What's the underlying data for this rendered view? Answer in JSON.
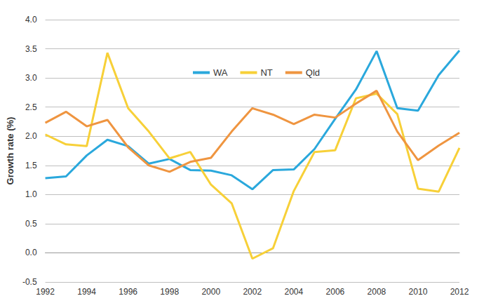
{
  "chart_data": {
    "type": "line",
    "y_label": "Growth rate (%)",
    "x": [
      1992,
      1993,
      1994,
      1995,
      1996,
      1997,
      1998,
      1999,
      2000,
      2001,
      2002,
      2003,
      2004,
      2005,
      2006,
      2007,
      2008,
      2009,
      2010,
      2011,
      2012
    ],
    "series": [
      {
        "name": "WA",
        "color": "#2AA8DC",
        "values": [
          1.28,
          1.31,
          1.67,
          1.94,
          1.83,
          1.53,
          1.61,
          1.42,
          1.41,
          1.33,
          1.09,
          1.42,
          1.43,
          1.78,
          2.3,
          2.8,
          3.46,
          2.48,
          2.44,
          3.05,
          3.47
        ]
      },
      {
        "name": "NT",
        "color": "#F7D038",
        "values": [
          2.03,
          1.86,
          1.83,
          3.43,
          2.48,
          2.08,
          1.62,
          1.73,
          1.17,
          0.85,
          -0.1,
          0.08,
          1.06,
          1.73,
          1.76,
          2.65,
          2.73,
          2.38,
          1.1,
          1.05,
          1.8
        ]
      },
      {
        "name": "Qld",
        "color": "#EF9540",
        "values": [
          2.23,
          2.42,
          2.17,
          2.28,
          1.81,
          1.5,
          1.39,
          1.56,
          1.63,
          2.08,
          2.48,
          2.37,
          2.21,
          2.37,
          2.32,
          2.56,
          2.78,
          2.08,
          1.59,
          1.84,
          2.06
        ]
      }
    ],
    "xlim": [
      1992,
      2012
    ],
    "xticks": [
      1992,
      1994,
      1996,
      1998,
      2000,
      2002,
      2004,
      2006,
      2008,
      2010,
      2012
    ],
    "ylim": [
      -0.5,
      4.0
    ],
    "yticks": [
      -0.5,
      {
        "value": 0,
        "label": "0.0"
      },
      0.5,
      {
        "value": 1,
        "label": "1.0"
      },
      1.5,
      {
        "value": 2,
        "label": "2.0"
      },
      2.5,
      {
        "value": 3,
        "label": "3.0"
      },
      3.5,
      {
        "value": 4,
        "label": "4.0"
      }
    ],
    "grid": true,
    "legend": "top"
  }
}
